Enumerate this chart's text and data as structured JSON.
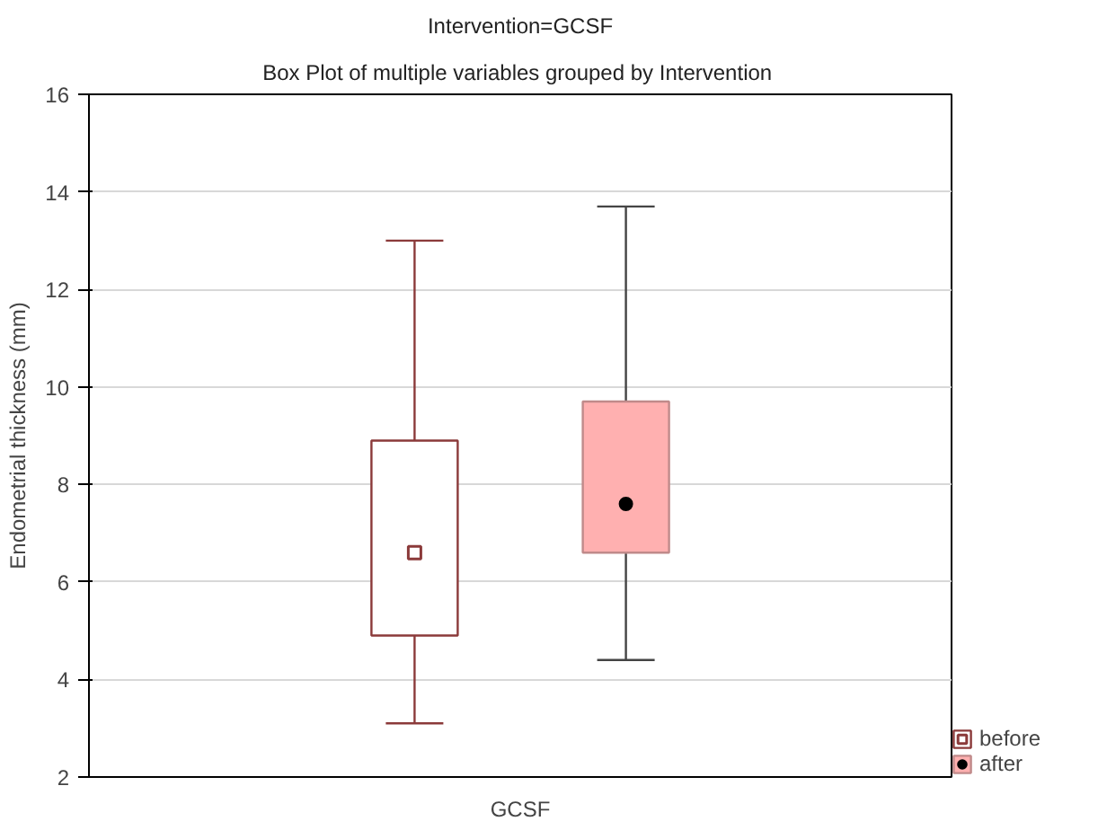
{
  "chart_data": {
    "type": "box",
    "title": "Intervention=GCSF",
    "subtitle": "Box Plot of multiple variables grouped by  Intervention",
    "ylabel": "Endometrial thickness (mm)",
    "categories": [
      "GCSF"
    ],
    "ylim": [
      2,
      16
    ],
    "yticks": [
      2,
      4,
      6,
      8,
      10,
      12,
      14,
      16
    ],
    "grid": "y",
    "legend": "bottom right",
    "series": [
      {
        "name": "before",
        "color": "#8b3a3a",
        "marker": "square",
        "boxes": [
          {
            "low": 3.1,
            "q1": 4.9,
            "median": 6.6,
            "q3": 8.9,
            "high": 13.0
          }
        ]
      },
      {
        "name": "after",
        "color": "#ffb0b0",
        "marker": "circle",
        "boxes": [
          {
            "low": 4.4,
            "q1": 6.6,
            "median": 7.6,
            "q3": 9.7,
            "high": 13.7
          }
        ]
      }
    ]
  }
}
